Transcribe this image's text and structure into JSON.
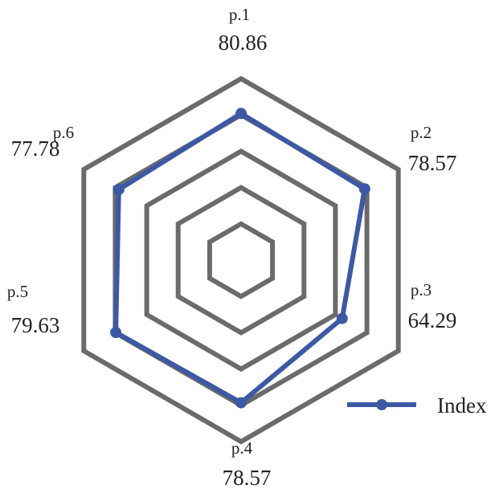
{
  "chart_data": {
    "type": "radar",
    "categories": [
      "p.1",
      "p.2",
      "p.3",
      "p.4",
      "p.5",
      "p.6"
    ],
    "value_labels": [
      "80.86",
      "78.57",
      "64.29",
      "78.57",
      "79.63",
      "77.78"
    ],
    "series": [
      {
        "name": "Index",
        "values": [
          80.86,
          78.57,
          64.29,
          78.57,
          79.63,
          77.78
        ]
      }
    ],
    "rlim": [
      0,
      100
    ],
    "ring_levels": [
      20,
      40,
      60,
      80,
      100
    ],
    "grid": true,
    "legend_position": "bottom-right",
    "colors": {
      "series": "#3d59a5",
      "grid": "#6b6b6b",
      "text": "#222222"
    }
  }
}
